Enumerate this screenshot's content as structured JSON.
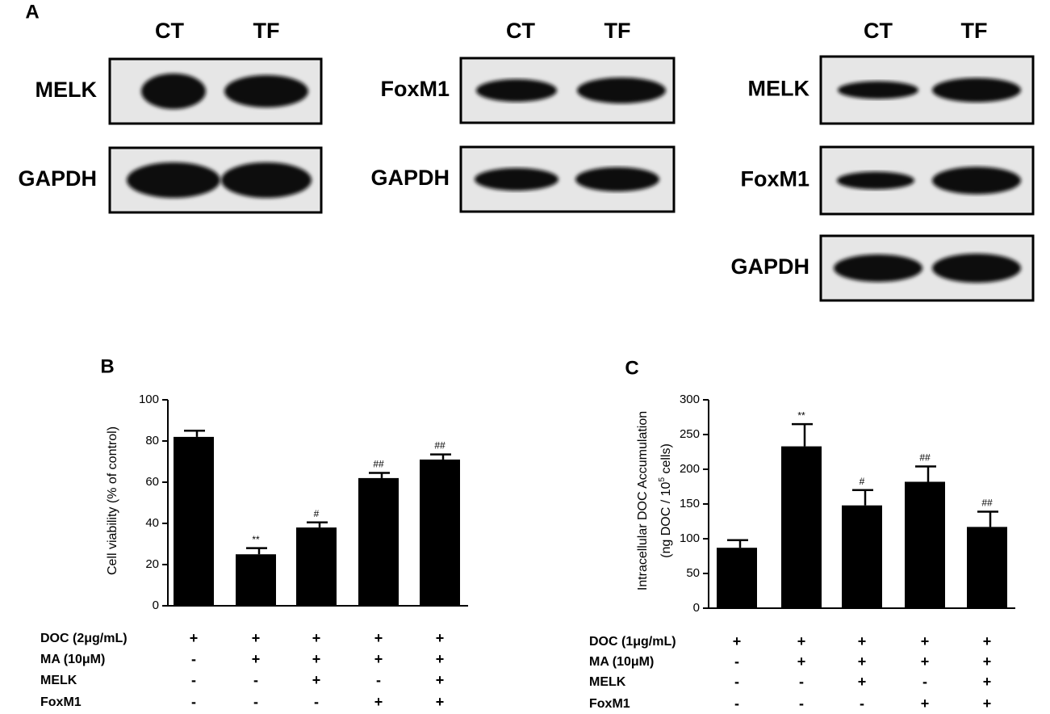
{
  "panel_a": {
    "label": "A",
    "groups": [
      {
        "columns": [
          "CT",
          "TF"
        ],
        "rows": [
          "MELK",
          "GAPDH"
        ]
      },
      {
        "columns": [
          "CT",
          "TF"
        ],
        "rows": [
          "FoxM1",
          "GAPDH"
        ]
      },
      {
        "columns": [
          "CT",
          "TF"
        ],
        "rows": [
          "MELK",
          "FoxM1",
          "GAPDH"
        ]
      }
    ]
  },
  "chart_data": [
    {
      "type": "bar",
      "panel_label": "B",
      "ylabel": "Cell viability (% of control)",
      "values": [
        82,
        25,
        38,
        62,
        71
      ],
      "errors": [
        3,
        3,
        2.5,
        2.5,
        2.5
      ],
      "annotations": [
        null,
        "**",
        "#",
        "##",
        "##"
      ],
      "color": "#000000",
      "ylim": [
        0,
        100
      ],
      "yticks": [
        0,
        20,
        40,
        60,
        80,
        100
      ],
      "treatments": [
        {
          "name": "DOC (2μg/mL)",
          "signs": [
            "+",
            "+",
            "+",
            "+",
            "+"
          ]
        },
        {
          "name": "MA (10μM)",
          "signs": [
            "-",
            "+",
            "+",
            "+",
            "+"
          ]
        },
        {
          "name": "MELK",
          "signs": [
            "-",
            "-",
            "+",
            "-",
            "+"
          ]
        },
        {
          "name": "FoxM1",
          "signs": [
            "-",
            "-",
            "-",
            "+",
            "+"
          ]
        }
      ]
    },
    {
      "type": "bar",
      "panel_label": "C",
      "ylabel": "Intracellular DOC Accumulation",
      "ylabel2_parts": [
        "(ng DOC / 10",
        "5",
        " cells)"
      ],
      "values": [
        87,
        233,
        148,
        182,
        117
      ],
      "errors": [
        11,
        32,
        22,
        22,
        22
      ],
      "annotations": [
        null,
        "**",
        "#",
        "##",
        "##"
      ],
      "color": "#000000",
      "ylim": [
        0,
        300
      ],
      "yticks": [
        0,
        50,
        100,
        150,
        200,
        250,
        300
      ],
      "treatments": [
        {
          "name": "DOC (1μg/mL)",
          "signs": [
            "+",
            "+",
            "+",
            "+",
            "+"
          ]
        },
        {
          "name": "MA (10μM)",
          "signs": [
            "-",
            "+",
            "+",
            "+",
            "+"
          ]
        },
        {
          "name": "MELK",
          "signs": [
            "-",
            "-",
            "+",
            "-",
            "+"
          ]
        },
        {
          "name": "FoxM1",
          "signs": [
            "-",
            "-",
            "-",
            "+",
            "+"
          ]
        }
      ]
    }
  ]
}
